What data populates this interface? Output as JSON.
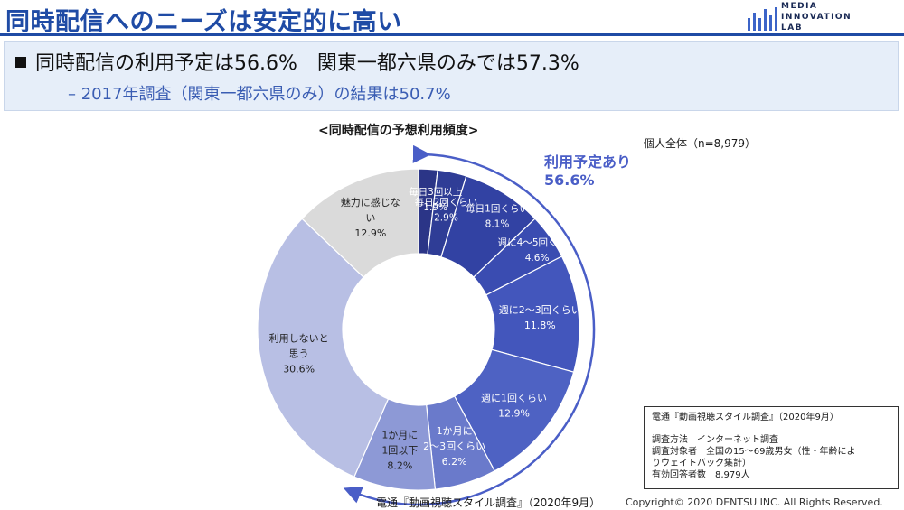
{
  "header": {
    "title": "同時配信へのニーズは安定的に高い",
    "logo_lines": [
      "MEDIA",
      "INNOVATION",
      "LAB"
    ]
  },
  "summary": {
    "main": "同時配信の利用予定は56.6%　関東一都六県のみでは57.3%",
    "sub": "– 2017年調査（関東一都六県のみ）の結果は50.7%"
  },
  "chart_data": {
    "type": "donut",
    "title": "<同時配信の予想利用頻度>",
    "sample": "個人全体（n=8,979）",
    "planned_group": {
      "label": "利用予定あり",
      "value_text": "56.6%",
      "value": 56.6
    },
    "slices": [
      {
        "label": "毎日3回以上",
        "value": 1.9,
        "value_text": "1.9%",
        "color": "#2b3587"
      },
      {
        "label": "毎日2回くらい",
        "value": 2.9,
        "value_text": "2.9%",
        "color": "#2f3d96"
      },
      {
        "label": "毎日1回くらい",
        "value": 8.1,
        "value_text": "8.1%",
        "color": "#3242a3"
      },
      {
        "label": "週に4～5回くらい",
        "value": 4.6,
        "value_text": "4.6%",
        "color": "#3a4cb1"
      },
      {
        "label": "週に2～3回くらい",
        "value": 11.8,
        "value_text": "11.8%",
        "color": "#4356bc"
      },
      {
        "label": "週に1回くらい",
        "value": 12.9,
        "value_text": "12.9%",
        "color": "#4e62c3"
      },
      {
        "label": "1か月に2～3回くらい",
        "value": 6.2,
        "value_text": "6.2%",
        "color": "#6a7acb"
      },
      {
        "label": "1か月に1回以下",
        "value": 8.2,
        "value_text": "8.2%",
        "color": "#8d99d6"
      },
      {
        "label": "利用しないと思う",
        "value": 30.6,
        "value_text": "30.6%",
        "color": "#b8bfe4"
      },
      {
        "label": "魅力に感じない",
        "value": 12.9,
        "value_text": "12.9%",
        "color": "#dadada"
      }
    ]
  },
  "source_box": {
    "title": "電通『動画視聴スタイル調査』（2020年9月）",
    "method": "調査方法　インターネット調査",
    "target_line1": "調査対象者　全国の15～69歳男女（性・年齢によ",
    "target_line2": "りウェイトバック集計）",
    "respondents": "有効回答者数　8,979人"
  },
  "footer": {
    "source": "電通『動画視聴スタイル調査』（2020年9月）",
    "copyright": "Copyright© 2020 DENTSU INC. All Rights Reserved."
  }
}
